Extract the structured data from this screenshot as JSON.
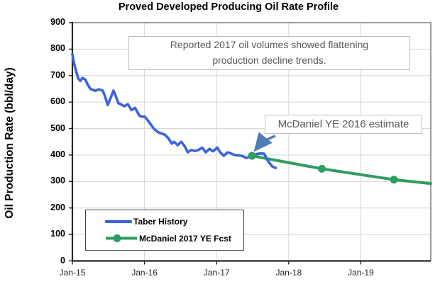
{
  "chart_data": {
    "type": "line",
    "title": "Proved Developed Producing Oil Rate Profile",
    "xlabel": "",
    "ylabel": "Oil Production Rate (bbl/day)",
    "ylim": [
      0,
      900
    ],
    "yticks": [
      0,
      100,
      200,
      300,
      400,
      500,
      600,
      700,
      800,
      900
    ],
    "xticks": [
      "Jan-15",
      "Jan-16",
      "Jan-17",
      "Jan-18",
      "Jan-19"
    ],
    "x_unit": "years since Jan-2015",
    "xlim": [
      0,
      4.97
    ],
    "grid": true,
    "legend_position": "lower-left box",
    "series": [
      {
        "name": "Taber History",
        "color": "#3C64DB",
        "marker": "none",
        "points": [
          [
            0.0,
            781
          ],
          [
            0.02,
            750
          ],
          [
            0.06,
            709
          ],
          [
            0.08,
            690
          ],
          [
            0.11,
            680
          ],
          [
            0.14,
            691
          ],
          [
            0.18,
            685
          ],
          [
            0.21,
            667
          ],
          [
            0.25,
            650
          ],
          [
            0.29,
            645
          ],
          [
            0.32,
            643
          ],
          [
            0.37,
            648
          ],
          [
            0.42,
            643
          ],
          [
            0.45,
            624
          ],
          [
            0.49,
            589
          ],
          [
            0.53,
            616
          ],
          [
            0.57,
            643
          ],
          [
            0.6,
            624
          ],
          [
            0.64,
            595
          ],
          [
            0.67,
            592
          ],
          [
            0.72,
            584
          ],
          [
            0.77,
            592
          ],
          [
            0.82,
            570
          ],
          [
            0.87,
            578
          ],
          [
            0.93,
            548
          ],
          [
            0.98,
            544
          ],
          [
            1.0,
            546
          ],
          [
            1.06,
            526
          ],
          [
            1.13,
            499
          ],
          [
            1.19,
            486
          ],
          [
            1.28,
            477
          ],
          [
            1.33,
            464
          ],
          [
            1.38,
            443
          ],
          [
            1.41,
            450
          ],
          [
            1.46,
            437
          ],
          [
            1.51,
            450
          ],
          [
            1.56,
            432
          ],
          [
            1.6,
            410
          ],
          [
            1.65,
            419
          ],
          [
            1.7,
            415
          ],
          [
            1.75,
            419
          ],
          [
            1.8,
            428
          ],
          [
            1.85,
            410
          ],
          [
            1.9,
            423
          ],
          [
            1.95,
            414
          ],
          [
            2.01,
            428
          ],
          [
            2.05,
            410
          ],
          [
            2.1,
            397
          ],
          [
            2.15,
            410
          ],
          [
            2.2,
            406
          ],
          [
            2.24,
            401
          ],
          [
            2.29,
            399
          ],
          [
            2.35,
            397
          ],
          [
            2.41,
            389
          ],
          [
            2.46,
            393
          ],
          [
            2.52,
            398
          ],
          [
            2.56,
            404
          ],
          [
            2.62,
            406
          ],
          [
            2.66,
            405
          ],
          [
            2.71,
            378
          ],
          [
            2.77,
            357
          ],
          [
            2.82,
            351
          ]
        ]
      },
      {
        "name": "McDaniel 2017 YE Fcst",
        "color": "#2E9D62",
        "marker": "circle",
        "points": [
          [
            2.49,
            397
          ],
          [
            3.46,
            348
          ],
          [
            4.46,
            307
          ],
          [
            4.97,
            292
          ]
        ],
        "marker_points": [
          [
            2.49,
            397
          ],
          [
            3.46,
            348
          ],
          [
            4.46,
            307
          ]
        ]
      }
    ],
    "annotations": [
      {
        "text": "Reported 2017 oil volumes showed flattening production decline trends."
      },
      {
        "text": "McDaniel YE 2016 estimate",
        "arrow_to_point": [
          2.49,
          397
        ]
      }
    ]
  },
  "colors": {
    "history_line": "#3C64DB",
    "forecast_line": "#2E9D62",
    "arrow": "#4E7CB2",
    "gridline": "#D6D6D6",
    "plot_border": "#595959",
    "axis": "#262626",
    "annotation_text": "#595959",
    "annotation_border": "#BFBFBF"
  }
}
